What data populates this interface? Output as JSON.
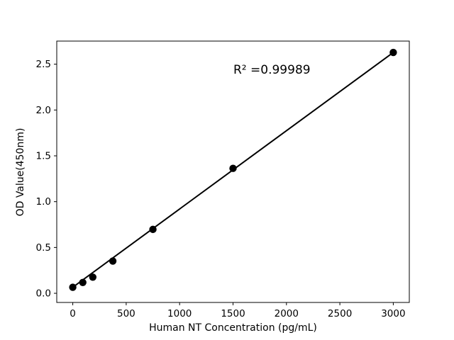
{
  "chart_data": {
    "type": "scatter",
    "title": "",
    "xlabel": "Human NT Concentration (pg/mL)",
    "ylabel": "OD Value(450nm)",
    "annotation": {
      "text": "R² =0.99989",
      "x": 1500,
      "y": 2.4
    },
    "x": [
      0,
      93.75,
      187.5,
      375,
      750,
      1500,
      3000
    ],
    "y": [
      0.066,
      0.118,
      0.176,
      0.352,
      0.697,
      1.363,
      2.628
    ],
    "fit_line": {
      "x": [
        0,
        3000
      ],
      "y": [
        0.066,
        2.628
      ]
    },
    "xlim": [
      -150,
      3150
    ],
    "ylim": [
      -0.1,
      2.752
    ],
    "xticks": [
      0,
      500,
      1000,
      1500,
      2000,
      2500,
      3000
    ],
    "yticks": [
      0,
      0.5,
      1,
      1.5,
      2,
      2.5
    ],
    "grid": false,
    "legend": null,
    "marker_color": "#000000",
    "line_color": "#000000",
    "axis_color": "#000000",
    "background": "#ffffff"
  }
}
